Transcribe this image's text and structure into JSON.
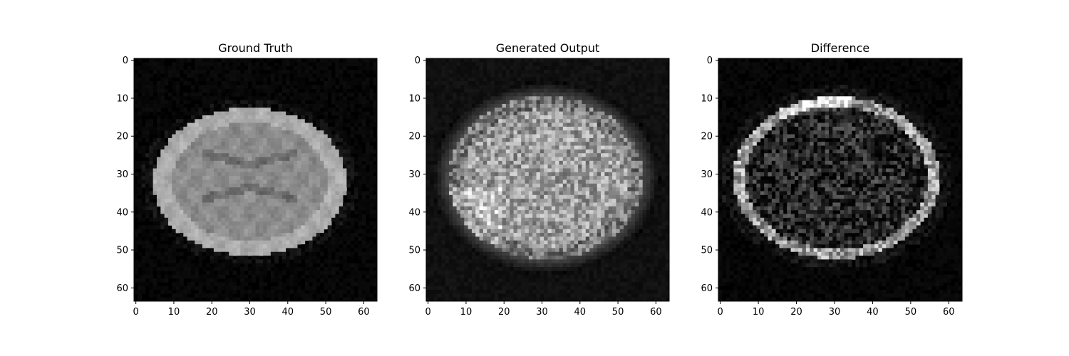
{
  "panels": [
    {
      "id": "gt",
      "title": "Ground Truth",
      "kind": "gt"
    },
    {
      "id": "gen",
      "title": "Generated Output",
      "kind": "gen"
    },
    {
      "id": "diff",
      "title": "Difference",
      "kind": "diff"
    }
  ],
  "x_ticks": [
    "0",
    "10",
    "20",
    "30",
    "40",
    "50",
    "60"
  ],
  "y_ticks": [
    "0",
    "10",
    "20",
    "30",
    "40",
    "50",
    "60"
  ],
  "tick_values": [
    0,
    10,
    20,
    30,
    40,
    50,
    60
  ],
  "image_size": 64,
  "colormap": "gray"
}
